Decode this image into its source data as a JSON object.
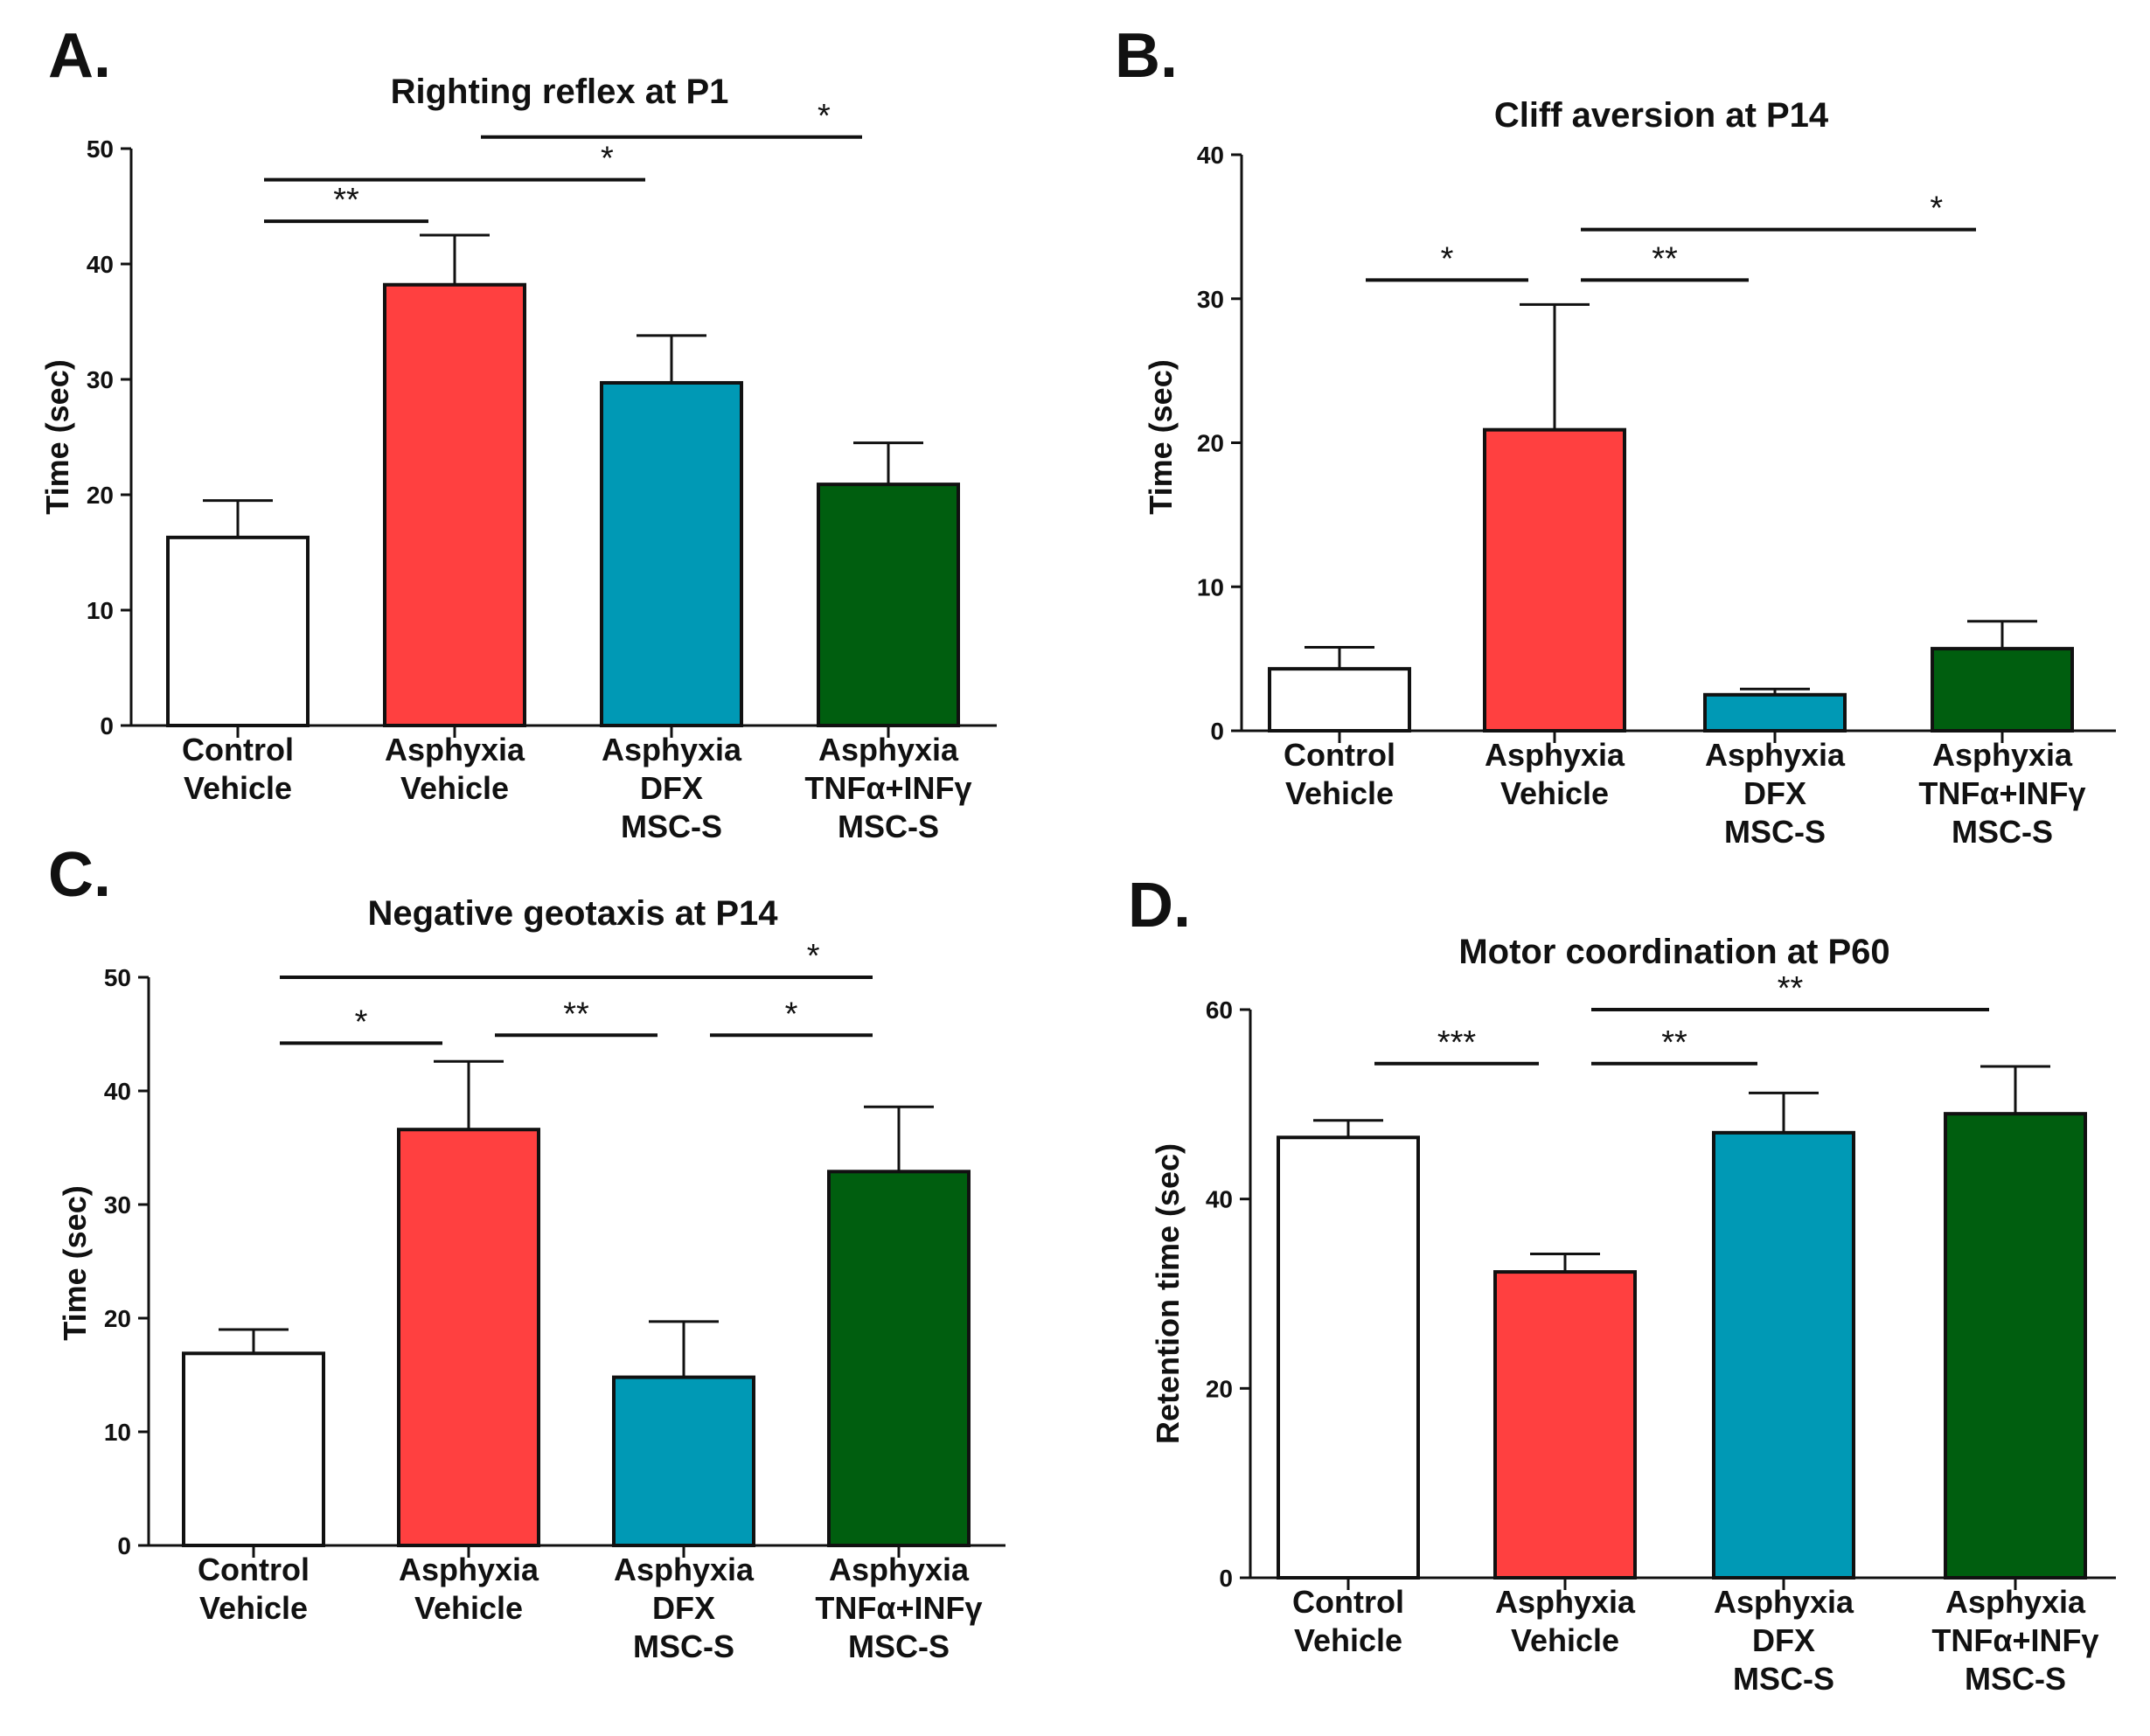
{
  "chart_data": [
    {
      "panel": "A.",
      "type": "bar",
      "title": "Righting reflex at P1",
      "ylabel": "Time (sec)",
      "xlabel": "",
      "ylim": [
        0,
        50
      ],
      "yticks": [
        0,
        10,
        20,
        30,
        40,
        50
      ],
      "categories": [
        [
          "Control",
          "Vehicle"
        ],
        [
          "Asphyxia",
          "Vehicle"
        ],
        [
          "Asphyxia",
          "DFX",
          "MSC-S"
        ],
        [
          "Asphyxia",
          "TNFα+INFγ",
          "MSC-S"
        ]
      ],
      "values": [
        16.3,
        38.2,
        29.7,
        20.9
      ],
      "errors": [
        3.2,
        4.3,
        4.1,
        3.6
      ],
      "colors": [
        "#ffffff",
        "#ff4040",
        "#0099b5",
        "#005e0f"
      ],
      "significance": [
        {
          "from": 0,
          "to": 1,
          "y": 43.7,
          "label": "**"
        },
        {
          "from": 0,
          "to": 2,
          "y": 47.3,
          "label": "*"
        },
        {
          "from": 1,
          "to": 3,
          "y": 51.0,
          "label": "*"
        }
      ]
    },
    {
      "panel": "B.",
      "type": "bar",
      "title": "Cliff aversion at P14",
      "ylabel": "Time (sec)",
      "xlabel": "",
      "ylim": [
        0,
        40
      ],
      "yticks": [
        0,
        10,
        20,
        30,
        40
      ],
      "categories": [
        [
          "Control",
          "Vehicle"
        ],
        [
          "Asphyxia",
          "Vehicle"
        ],
        [
          "Asphyxia",
          "DFX",
          "MSC-S"
        ],
        [
          "Asphyxia",
          "TNFα+INFγ",
          "MSC-S"
        ]
      ],
      "values": [
        4.3,
        20.9,
        2.5,
        5.7
      ],
      "errors": [
        1.5,
        8.7,
        0.4,
        1.9
      ],
      "colors": [
        "#ffffff",
        "#ff4040",
        "#0099b5",
        "#005e0f"
      ],
      "significance": [
        {
          "from": 0,
          "to": 1,
          "y": 31.3,
          "label": "*"
        },
        {
          "from": 1,
          "to": 2,
          "y": 31.3,
          "label": "**"
        },
        {
          "from": 1,
          "to": 3,
          "y": 34.8,
          "label": "*"
        }
      ]
    },
    {
      "panel": "C.",
      "type": "bar",
      "title": "Negative geotaxis at P14",
      "ylabel": "Time (sec)",
      "xlabel": "",
      "ylim": [
        0,
        50
      ],
      "yticks": [
        0,
        10,
        20,
        30,
        40,
        50
      ],
      "categories": [
        [
          "Control",
          "Vehicle"
        ],
        [
          "Asphyxia",
          "Vehicle"
        ],
        [
          "Asphyxia",
          "DFX",
          "MSC-S"
        ],
        [
          "Asphyxia",
          "TNFα+INFγ",
          "MSC-S"
        ]
      ],
      "values": [
        16.9,
        36.6,
        14.8,
        32.9
      ],
      "errors": [
        2.1,
        6.0,
        4.9,
        5.7
      ],
      "colors": [
        "#ffffff",
        "#ff4040",
        "#0099b5",
        "#005e0f"
      ],
      "significance": [
        {
          "from": 0,
          "to": 1,
          "y": 44.2,
          "label": "*"
        },
        {
          "from": 1,
          "to": 2,
          "y": 44.9,
          "label": "**"
        },
        {
          "from": 2,
          "to": 3,
          "y": 44.9,
          "label": "*"
        },
        {
          "from": 0,
          "to": 3,
          "y": 50.0,
          "label": "*"
        }
      ]
    },
    {
      "panel": "D.",
      "type": "bar",
      "title": "Motor coordination at P60",
      "ylabel": "Retention time (sec)",
      "xlabel": "",
      "ylim": [
        0,
        60
      ],
      "yticks": [
        0,
        20,
        40,
        60
      ],
      "categories": [
        [
          "Control",
          "Vehicle"
        ],
        [
          "Asphyxia",
          "Vehicle"
        ],
        [
          "Asphyxia",
          "DFX",
          "MSC-S"
        ],
        [
          "Asphyxia",
          "TNFα+INFγ",
          "MSC-S"
        ]
      ],
      "values": [
        46.5,
        32.3,
        47.0,
        49.0
      ],
      "errors": [
        1.8,
        1.9,
        4.2,
        5.0
      ],
      "colors": [
        "#ffffff",
        "#ff4040",
        "#0099b5",
        "#005e0f"
      ],
      "significance": [
        {
          "from": 0,
          "to": 1,
          "y": 54.3,
          "label": "***"
        },
        {
          "from": 1,
          "to": 2,
          "y": 54.3,
          "label": "**"
        },
        {
          "from": 1,
          "to": 3,
          "y": 60.0,
          "label": "**"
        }
      ]
    }
  ]
}
